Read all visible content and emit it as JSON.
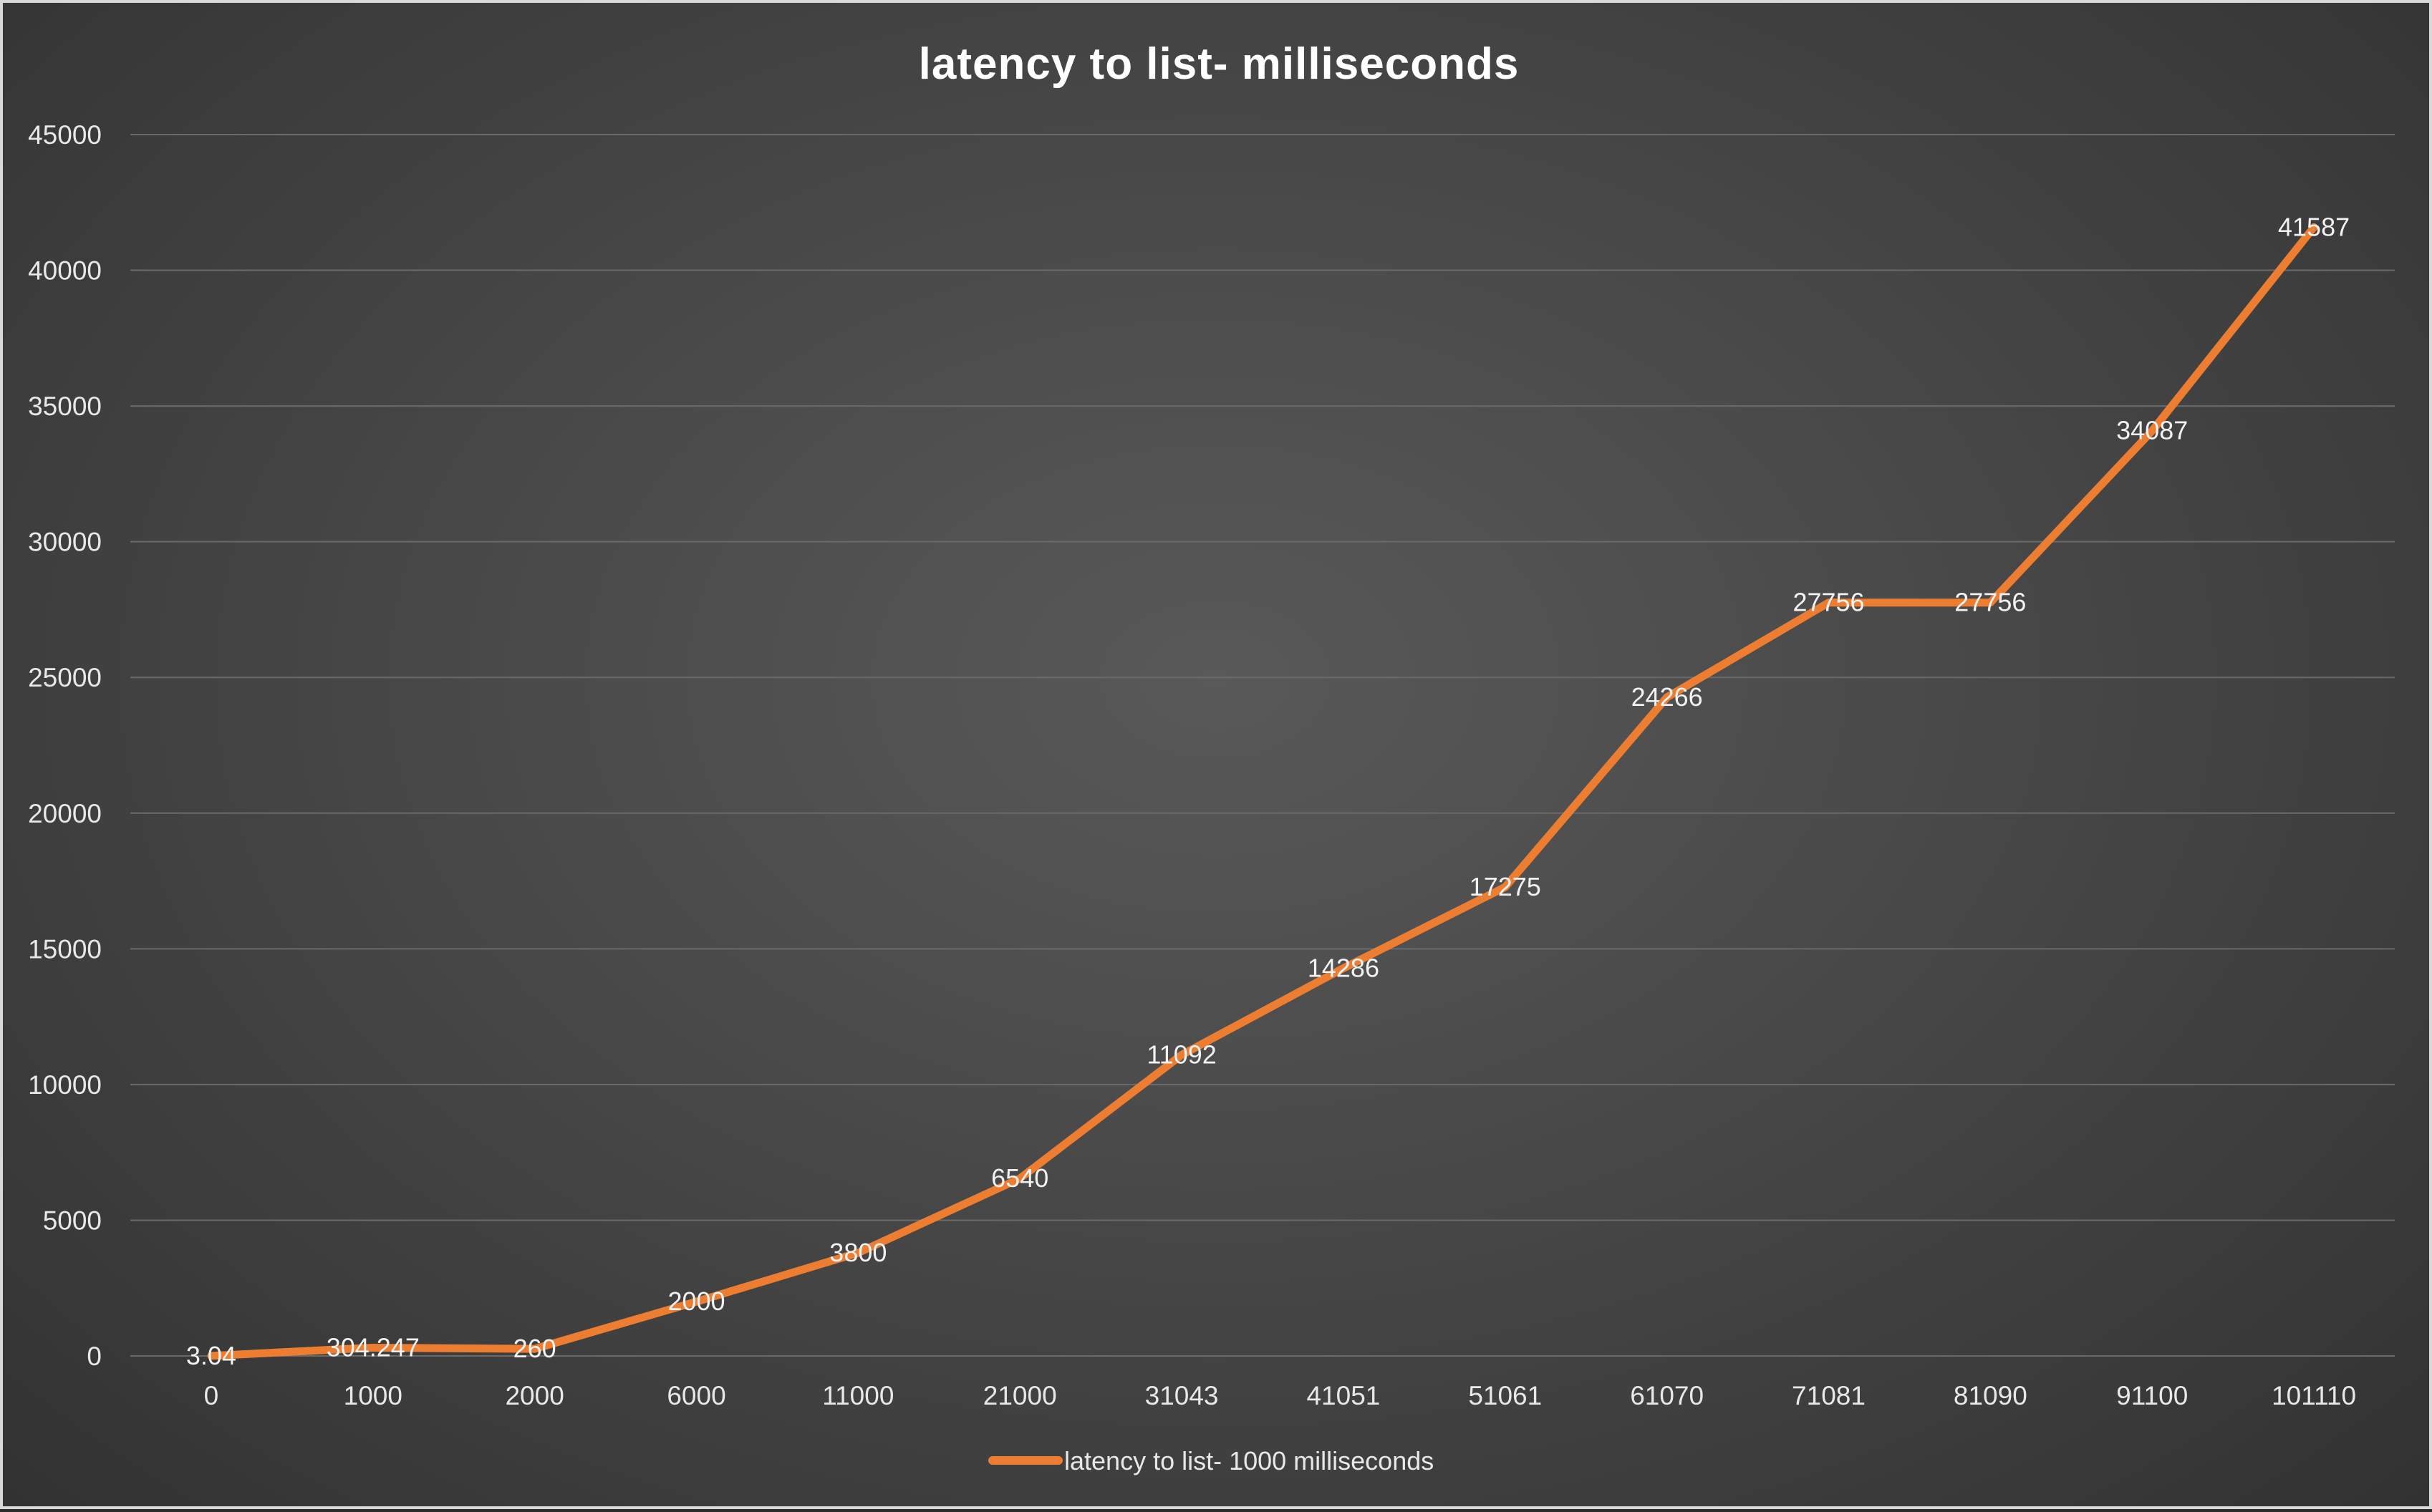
{
  "chart_data": {
    "type": "line",
    "title": "latency to list-  milliseconds",
    "categories": [
      "0",
      "1000",
      "2000",
      "6000",
      "11000",
      "21000",
      "31043",
      "41051",
      "51061",
      "61070",
      "71081",
      "81090",
      "91100",
      "101110"
    ],
    "series": [
      {
        "name": "latency to list- 1000 milliseconds",
        "values": [
          3.04,
          304.247,
          260,
          2000,
          3800,
          6540,
          11092,
          14286,
          17275,
          24266,
          27756,
          27756,
          34087,
          41587
        ],
        "labels": [
          "3.04",
          "304.247",
          "260",
          "2000",
          "3800",
          "6540",
          "11092",
          "14286",
          "17275",
          "24266",
          "27756",
          "27756",
          "34087",
          "41587"
        ],
        "color": "#ed7d31"
      }
    ],
    "ylim": [
      0,
      45000
    ],
    "yticks": [
      0,
      5000,
      10000,
      15000,
      20000,
      25000,
      30000,
      35000,
      40000,
      45000
    ],
    "grid": true,
    "legend": "bottom-center",
    "background": "#4a4a4a",
    "gridColor": "#6a6a6a"
  }
}
